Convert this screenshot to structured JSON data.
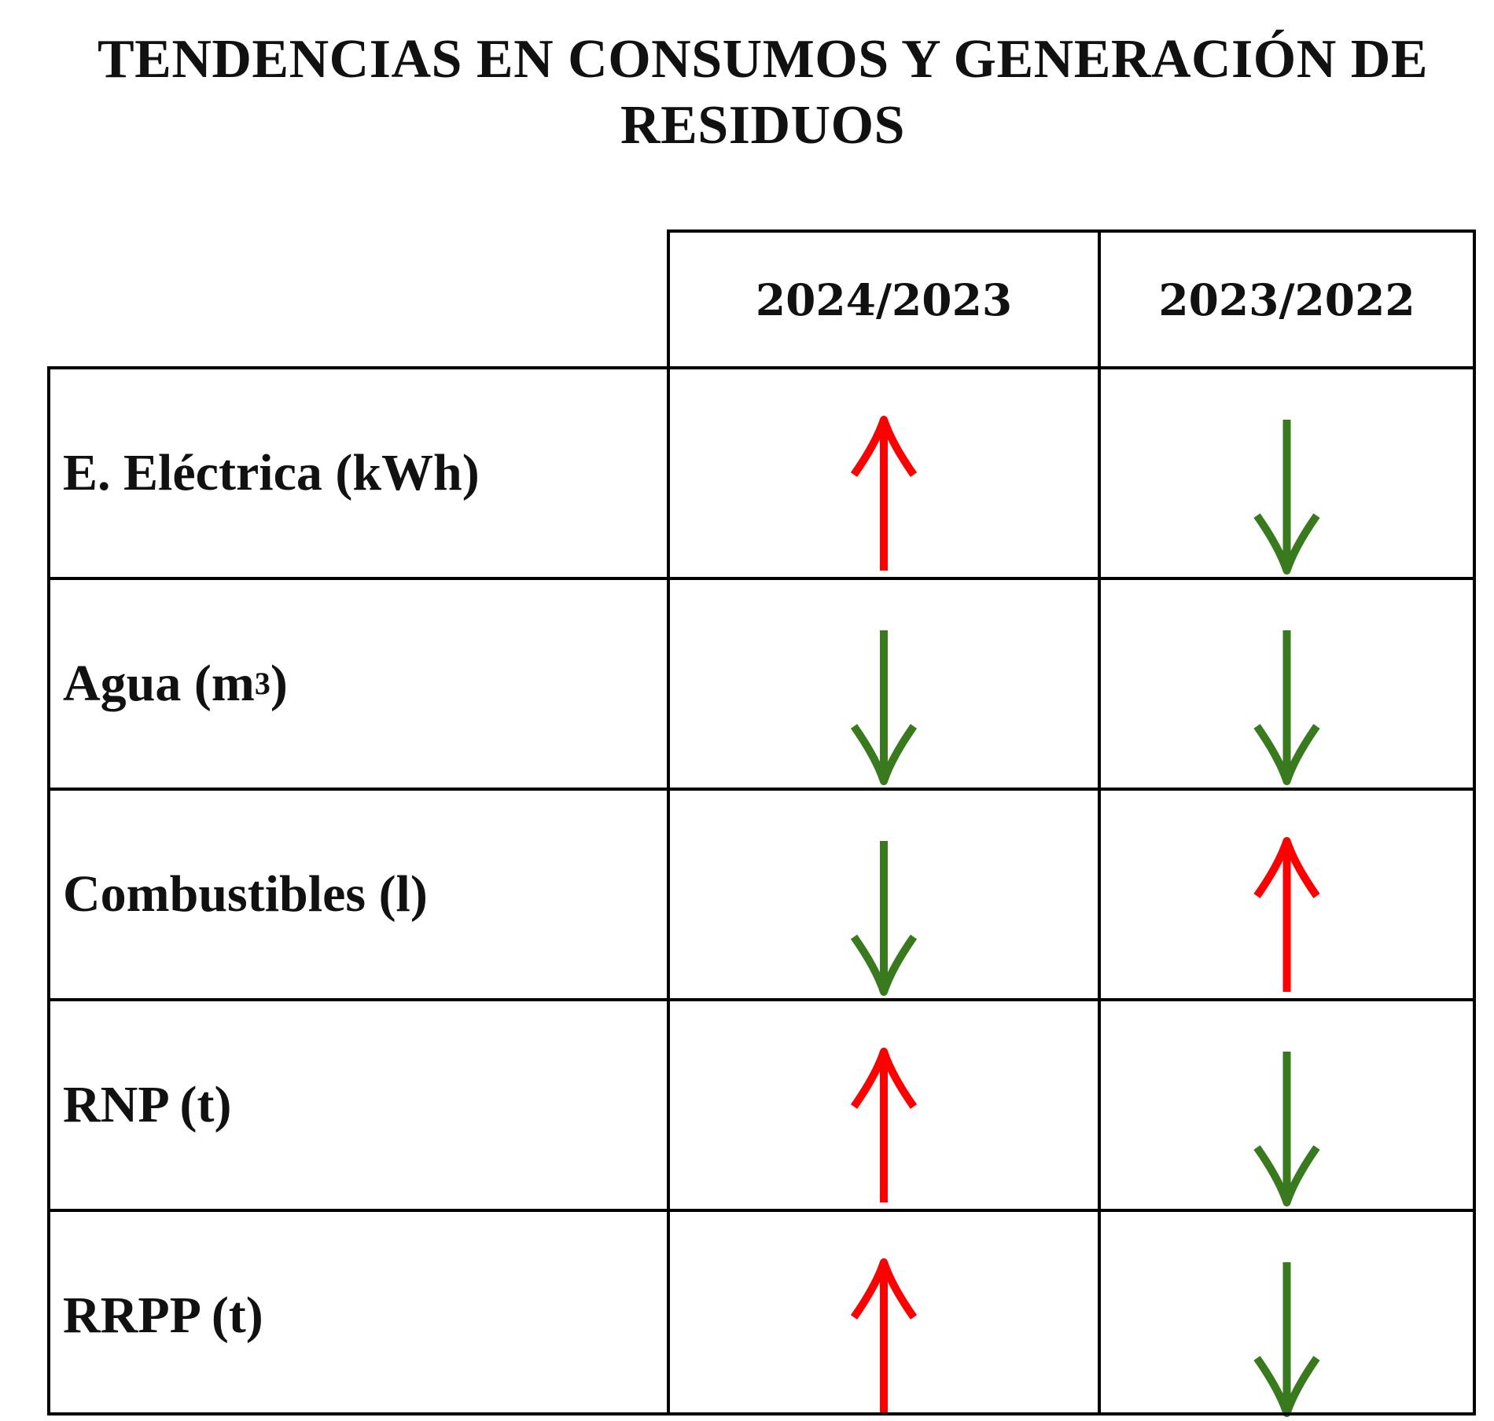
{
  "title": "TENDENCIAS EN CONSUMOS Y GENERACIÓN DE RESIDUOS",
  "colors": {
    "up": "#fe0000",
    "down": "#3a7a1f",
    "border": "#000000"
  },
  "columns": [
    "2024/2023",
    "2023/2022"
  ],
  "rows": [
    {
      "label": "E. Eléctrica (kWh)",
      "label_sup": "",
      "label_end": "",
      "trends": [
        "up",
        "down"
      ]
    },
    {
      "label": "Agua (m",
      "label_sup": "3",
      "label_end": ")",
      "trends": [
        "down",
        "down"
      ]
    },
    {
      "label": "Combustibles (l)",
      "label_sup": "",
      "label_end": "",
      "trends": [
        "down",
        "up"
      ]
    },
    {
      "label": "RNP (t)",
      "label_sup": "",
      "label_end": "",
      "trends": [
        "up",
        "down"
      ]
    },
    {
      "label": "RRPP (t)",
      "label_sup": "",
      "label_end": "",
      "trends": [
        "up",
        "down"
      ]
    }
  ],
  "icons": {
    "up": "arrow-up-icon",
    "down": "arrow-down-icon"
  }
}
